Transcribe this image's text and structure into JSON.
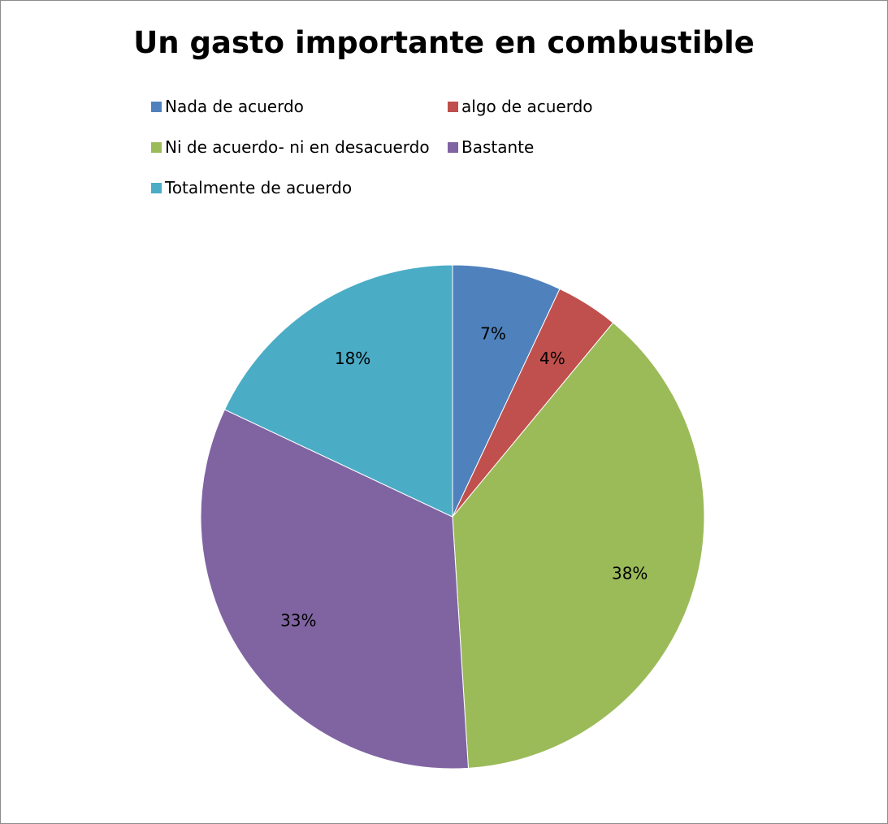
{
  "chart_data": {
    "type": "pie",
    "title": "Un gasto importante en combustible",
    "legend_position": "top",
    "start_angle_deg": 0,
    "direction": "clockwise",
    "slices": [
      {
        "name": "Nada de acuerdo",
        "value": 7,
        "label": "7%",
        "color": "#4f81bd"
      },
      {
        "name": "algo de acuerdo",
        "value": 4,
        "label": "4%",
        "color": "#c0504d"
      },
      {
        "name": "Ni de acuerdo- ni en desacuerdo",
        "value": 38,
        "label": "38%",
        "color": "#9bbb59"
      },
      {
        "name": "Bastante",
        "value": 33,
        "label": "33%",
        "color": "#8064a2"
      },
      {
        "name": "Totalmente de acuerdo",
        "value": 18,
        "label": "18%",
        "color": "#4bacc6"
      }
    ]
  }
}
